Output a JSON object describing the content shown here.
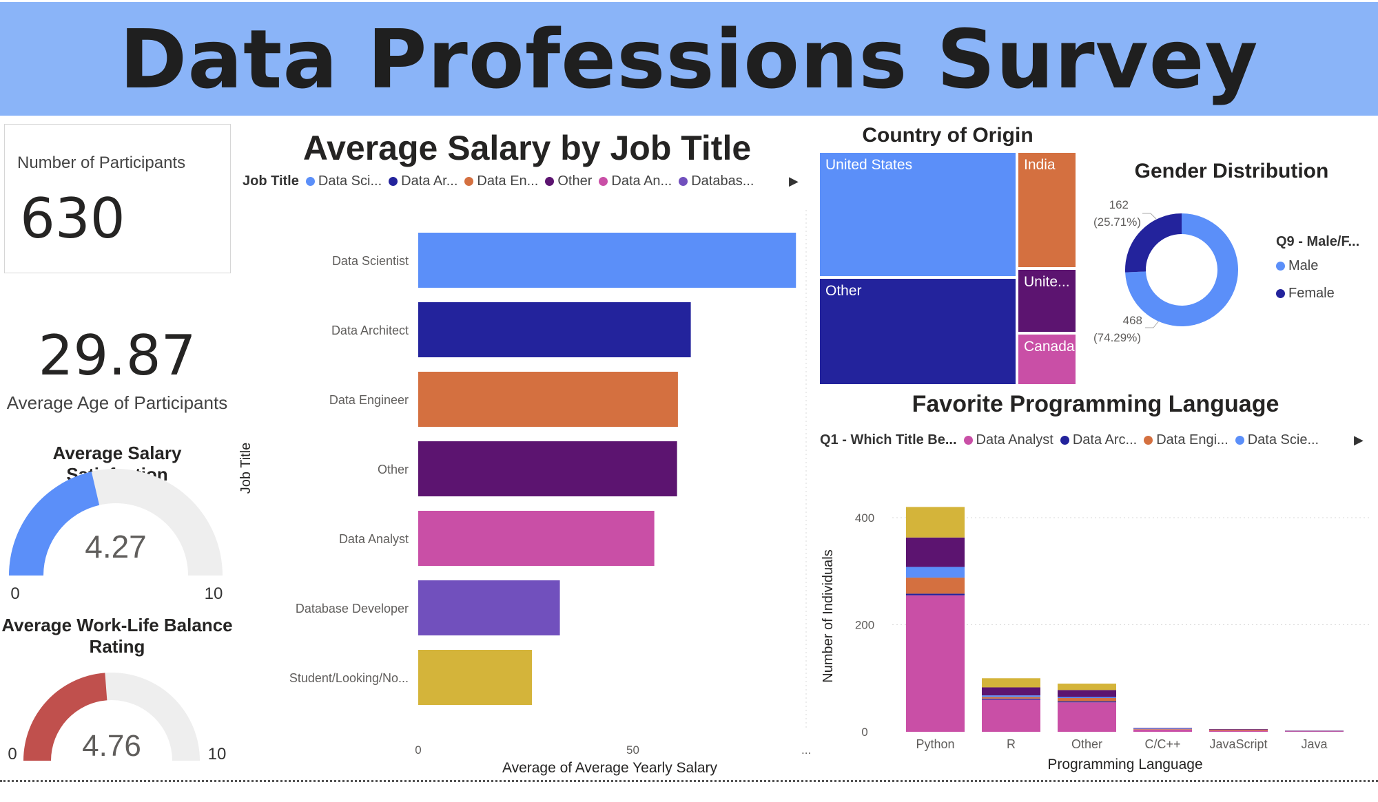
{
  "header": {
    "title": "Data Professions Survey"
  },
  "participants": {
    "label": "Number of Participants",
    "value": "630"
  },
  "avg_age": {
    "value": "29.87",
    "label": "Average Age of Participants"
  },
  "salary_satisfaction": {
    "title": "Average Salary Satisfaction",
    "value": 4.27,
    "value_text": "4.27",
    "min": "0",
    "max": "10",
    "color": "#5b8ff9"
  },
  "work_life": {
    "title_line1": "Average Work-Life Balance",
    "title_line2": "Rating",
    "value": 4.76,
    "value_text": "4.76",
    "min": "0",
    "max": "10",
    "color": "#c0504d"
  },
  "salary_chart": {
    "title": "Average Salary by Job Title",
    "legend_title": "Job Title",
    "legend": [
      {
        "label": "Data Sci...",
        "color": "#5b8ff9"
      },
      {
        "label": "Data Ar...",
        "color": "#23239c"
      },
      {
        "label": "Data En...",
        "color": "#d47040"
      },
      {
        "label": "Other",
        "color": "#5c1470"
      },
      {
        "label": "Data An...",
        "color": "#c94fa6"
      },
      {
        "label": "Databas...",
        "color": "#7150bd"
      }
    ],
    "more_ellipsis": "..."
  },
  "country": {
    "title": "Country of Origin",
    "cells": [
      {
        "label": "United States",
        "color": "#5b8ff9"
      },
      {
        "label": "India",
        "color": "#d47040"
      },
      {
        "label": "Other",
        "color": "#23239c"
      },
      {
        "label": "Unite...",
        "color": "#5c1470"
      },
      {
        "label": "Canada",
        "color": "#c94fa6"
      }
    ]
  },
  "gender": {
    "title": "Gender Distribution",
    "legend_title": "Q9 - Male/F...",
    "legend": [
      {
        "label": "Male",
        "color": "#5b8ff9"
      },
      {
        "label": "Female",
        "color": "#23239c"
      }
    ],
    "slices": [
      {
        "name": "Male",
        "value": 468,
        "pct_text": "(74.29%)",
        "color": "#5b8ff9"
      },
      {
        "name": "Female",
        "value": 162,
        "pct_text": "(25.71%)",
        "color": "#23239c"
      }
    ],
    "label_female_count": "162",
    "label_female_pct": "(25.71%)",
    "label_male_count": "468",
    "label_male_pct": "(74.29%)"
  },
  "language": {
    "title": "Favorite Programming Language",
    "legend_title": "Q1 - Which Title Be...",
    "legend": [
      {
        "label": "Data Analyst",
        "color": "#c94fa6"
      },
      {
        "label": "Data Arc...",
        "color": "#23239c"
      },
      {
        "label": "Data Engi...",
        "color": "#d47040"
      },
      {
        "label": "Data Scie...",
        "color": "#5b8ff9"
      }
    ]
  },
  "chart_data": [
    {
      "type": "bar",
      "orientation": "horizontal",
      "title": "Average Salary by Job Title",
      "xlabel": "Average of Average Yearly Salary",
      "ylabel": "Job Title",
      "xlim": [
        0,
        100
      ],
      "xticks": [
        "0",
        "50"
      ],
      "categories": [
        "Data Scientist",
        "Data Architect",
        "Data Engineer",
        "Other",
        "Data Analyst",
        "Database Developer",
        "Student/Looking/No..."
      ],
      "values": [
        88,
        63.5,
        60.5,
        60.3,
        55,
        33,
        26.5
      ],
      "colors": [
        "#5b8ff9",
        "#23239c",
        "#d47040",
        "#5c1470",
        "#c94fa6",
        "#7150bd",
        "#d4b43a"
      ]
    },
    {
      "type": "bar",
      "orientation": "vertical",
      "stacked": true,
      "title": "Favorite Programming Language",
      "xlabel": "Programming Language",
      "ylabel": "Number of Individuals",
      "ylim": [
        0,
        450
      ],
      "yticks": [
        "0",
        "200",
        "400"
      ],
      "categories": [
        "Python",
        "R",
        "Other",
        "C/C++",
        "JavaScript",
        "Java"
      ],
      "series": [
        {
          "color": "#c94fa6",
          "values": [
            255,
            60,
            55,
            4,
            2,
            1
          ]
        },
        {
          "color": "#23239c",
          "values": [
            3,
            2,
            2,
            0,
            0,
            0
          ]
        },
        {
          "color": "#d47040",
          "values": [
            30,
            3,
            6,
            1,
            2,
            0
          ]
        },
        {
          "color": "#5b8ff9",
          "values": [
            20,
            3,
            2,
            1,
            0,
            0
          ]
        },
        {
          "color": "#5c1470",
          "values": [
            55,
            15,
            13,
            1,
            1,
            1
          ]
        },
        {
          "color": "#d4b43a",
          "values": [
            57,
            17,
            12,
            0,
            0,
            0
          ]
        }
      ]
    }
  ]
}
